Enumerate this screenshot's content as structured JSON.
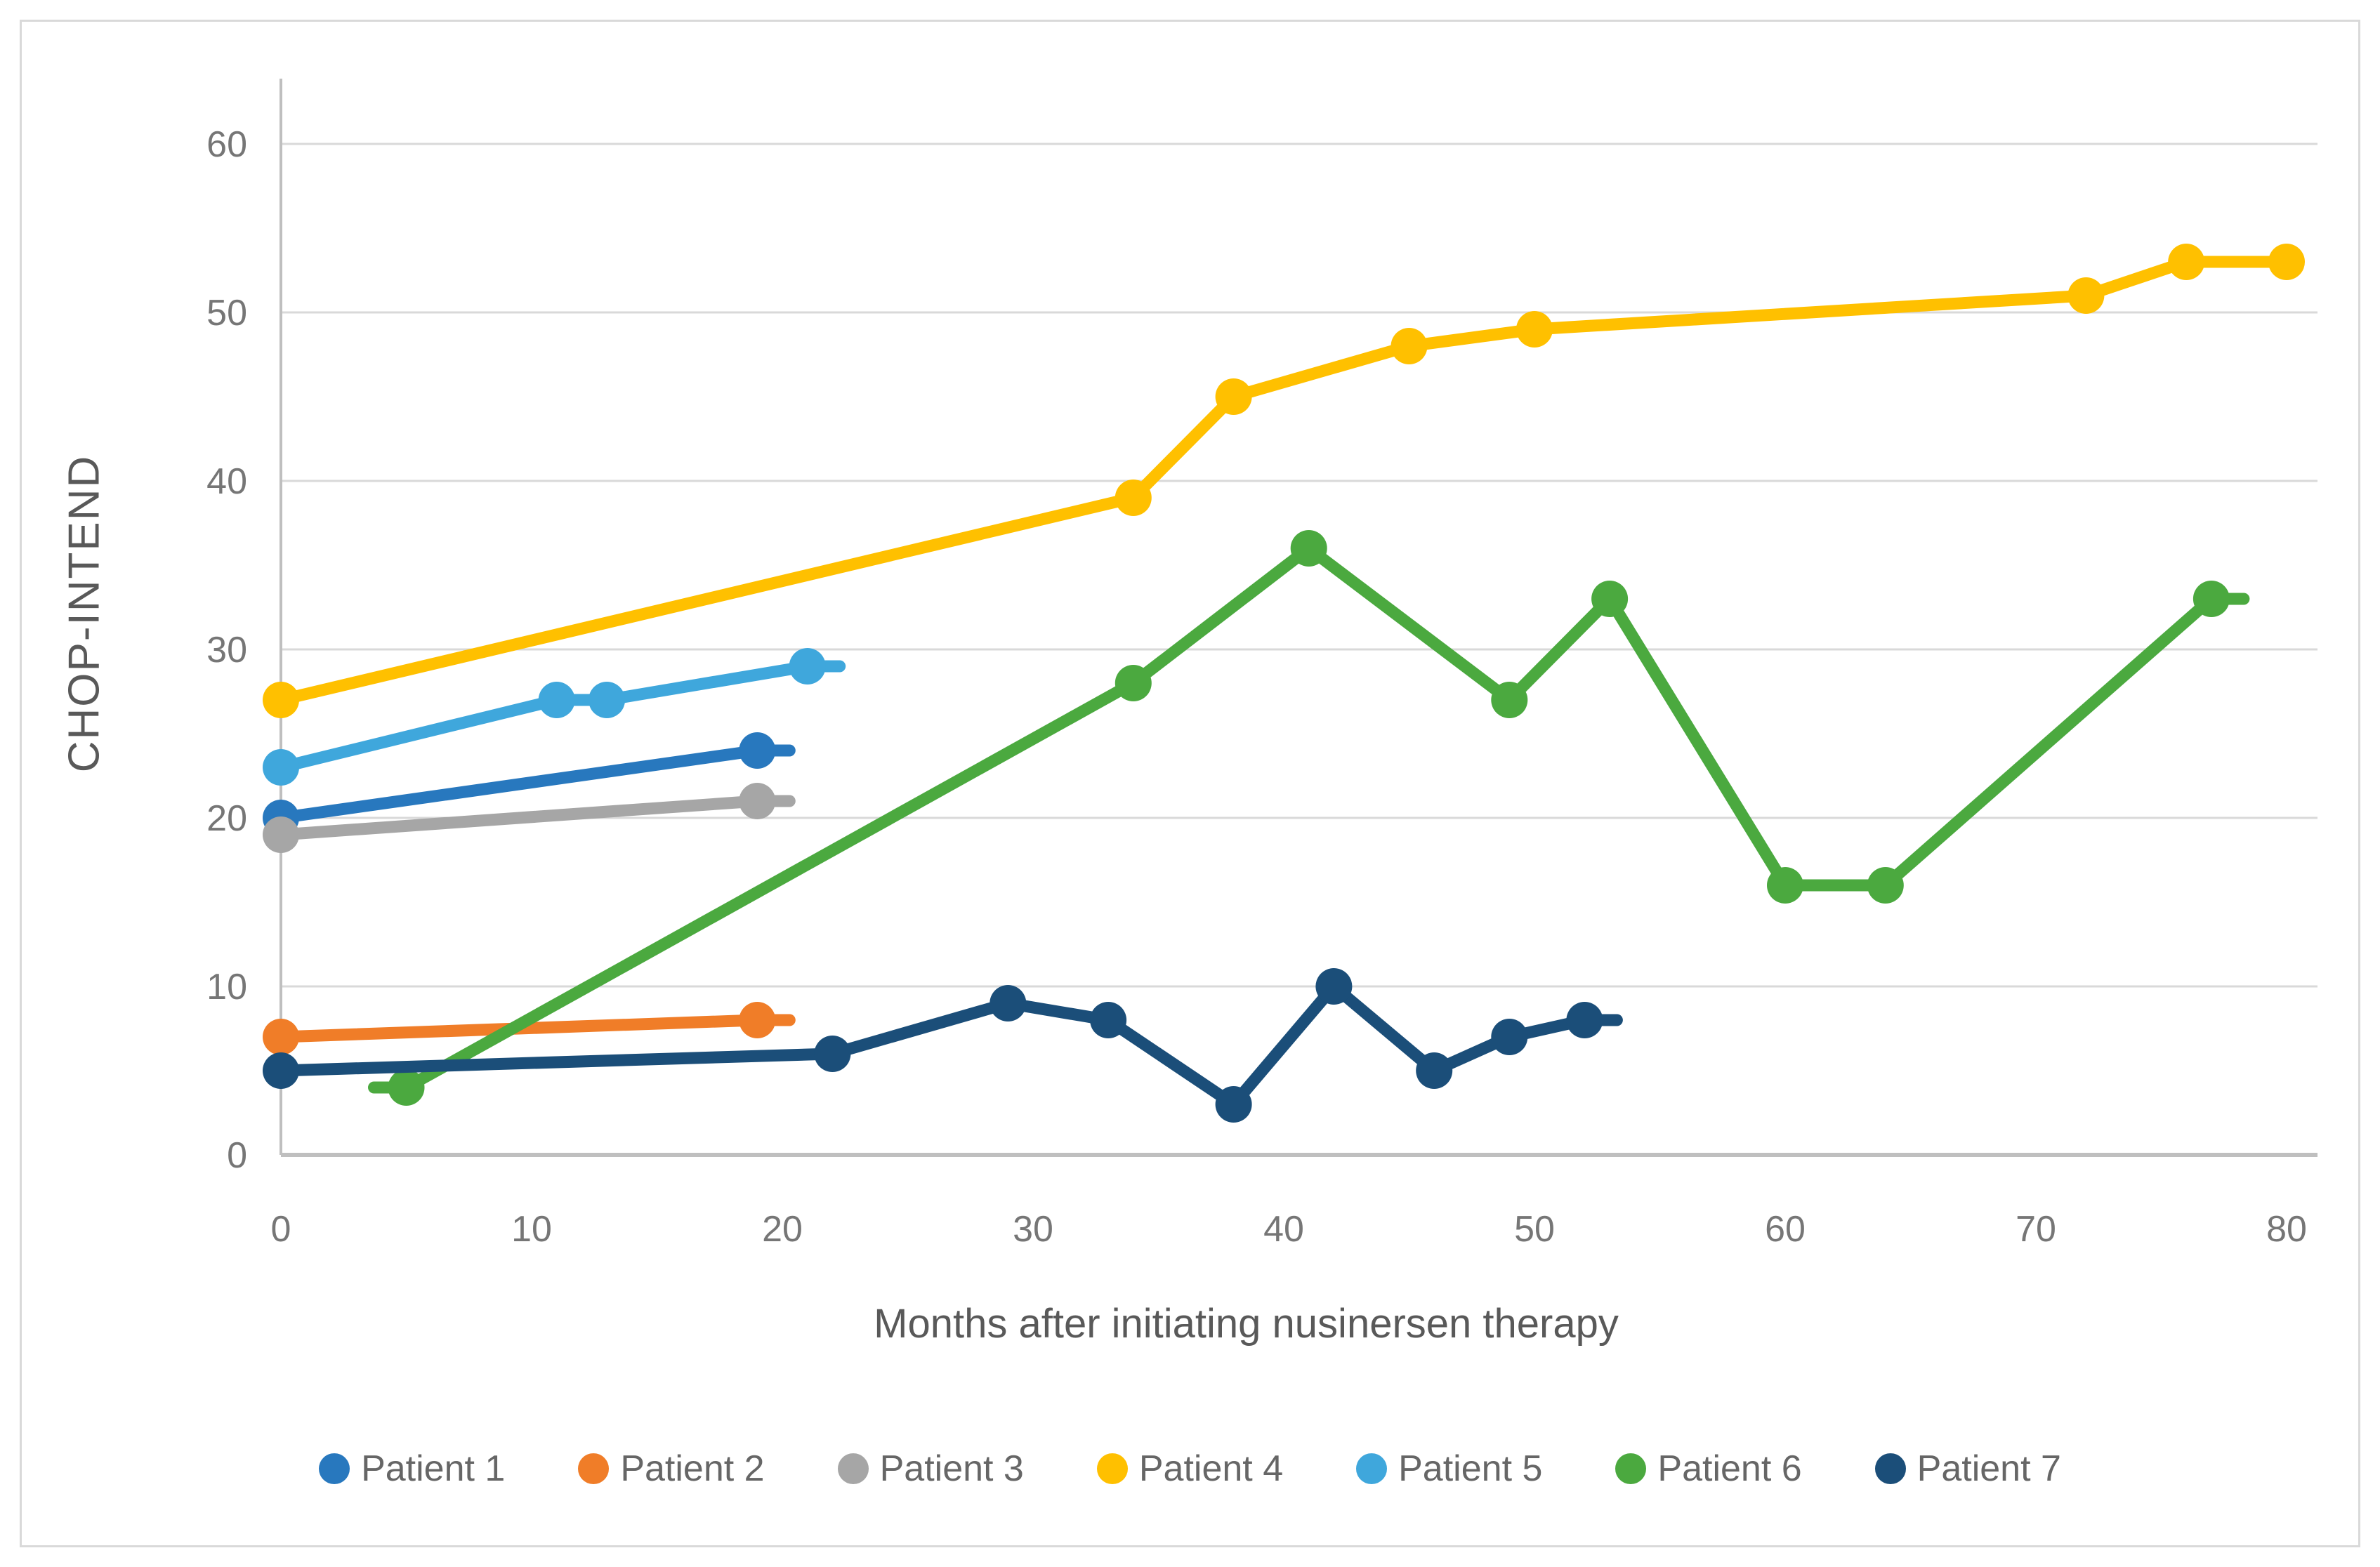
{
  "figure": {
    "background": "#FFFFFF",
    "border_color": "#D9D9D9",
    "tick_color": "#767676",
    "axis_title_color": "#595959",
    "legend_text_color": "#666666",
    "gridline_color": "#D9D9D9",
    "axis_line_color": "#BFBFBF"
  },
  "chart_data": {
    "type": "line",
    "title": "",
    "xlabel": "Months after initiating nusinersen therapy",
    "ylabel": "CHOP-INTEND",
    "xlim": [
      0,
      81.5
    ],
    "ylim": [
      0,
      63
    ],
    "x_ticks": [
      0,
      10,
      20,
      30,
      40,
      50,
      60,
      70,
      80
    ],
    "y_ticks": [
      0,
      10,
      20,
      30,
      40,
      50,
      60
    ],
    "grid": "horizontal",
    "legend_position": "bottom",
    "series": [
      {
        "name": "Patient 1",
        "color": "#2878BE",
        "points": [
          [
            0,
            20
          ],
          [
            19,
            24
          ]
        ],
        "end_stub": true,
        "start_stub": false
      },
      {
        "name": "Patient 2",
        "color": "#F07D28",
        "points": [
          [
            0,
            7
          ],
          [
            19,
            8
          ]
        ],
        "end_stub": true,
        "start_stub": false
      },
      {
        "name": "Patient 3",
        "color": "#A6A6A6",
        "points": [
          [
            0,
            19
          ],
          [
            19,
            21
          ]
        ],
        "end_stub": true,
        "start_stub": false
      },
      {
        "name": "Patient 4",
        "color": "#FFC000",
        "points": [
          [
            0,
            27
          ],
          [
            34,
            39
          ],
          [
            38,
            45
          ],
          [
            45,
            48
          ],
          [
            50,
            49
          ],
          [
            72,
            51
          ],
          [
            76,
            53
          ],
          [
            80,
            53
          ]
        ],
        "end_stub": false,
        "start_stub": false
      },
      {
        "name": "Patient 5",
        "color": "#3FA7DC",
        "points": [
          [
            0,
            23
          ],
          [
            11,
            27
          ],
          [
            13,
            27
          ],
          [
            21,
            29
          ]
        ],
        "end_stub": true,
        "start_stub": false
      },
      {
        "name": "Patient 6",
        "color": "#4BA93F",
        "points": [
          [
            5,
            4
          ],
          [
            34,
            28
          ],
          [
            41,
            36
          ],
          [
            49,
            27
          ],
          [
            53,
            33
          ],
          [
            60,
            16
          ],
          [
            64,
            16
          ],
          [
            77,
            33
          ]
        ],
        "end_stub": true,
        "start_stub": true
      },
      {
        "name": "Patient 7",
        "color": "#1B4E79",
        "points": [
          [
            0,
            5
          ],
          [
            22,
            6
          ],
          [
            29,
            9
          ],
          [
            33,
            8
          ],
          [
            38,
            3
          ],
          [
            42,
            10
          ],
          [
            46,
            5
          ],
          [
            49,
            7
          ],
          [
            52,
            8
          ]
        ],
        "end_stub": true,
        "start_stub": false
      }
    ]
  }
}
